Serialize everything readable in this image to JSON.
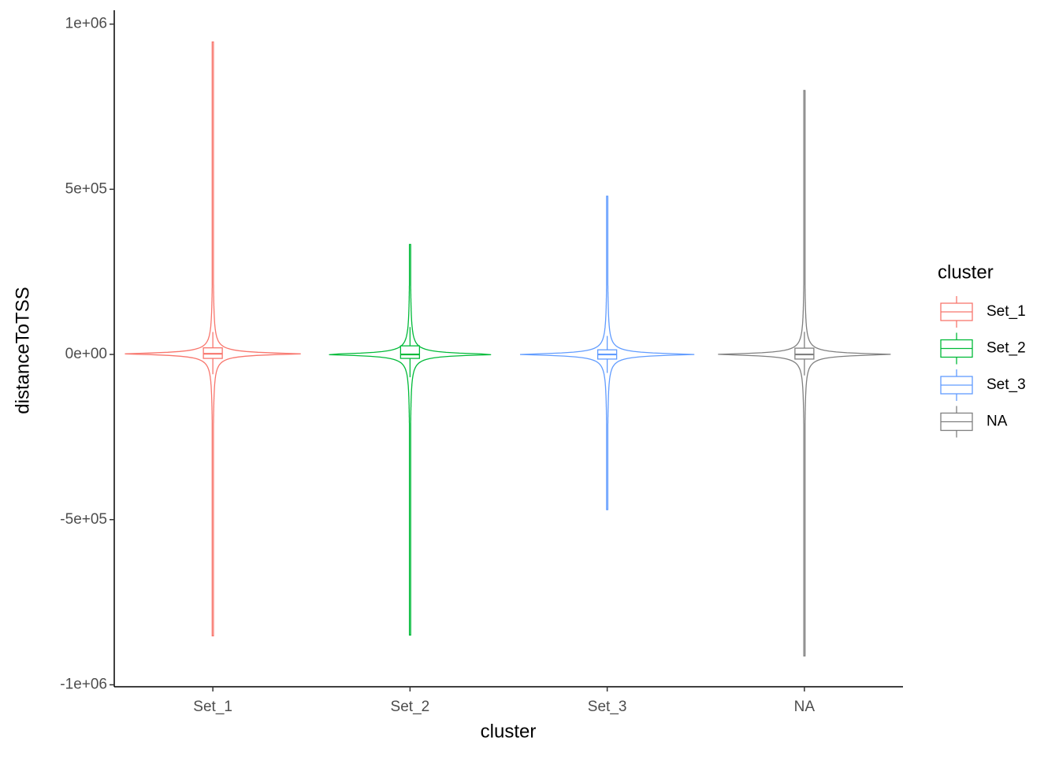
{
  "chart_data": {
    "type": "violin",
    "x_label": "cluster",
    "y_label": "distanceToTSS",
    "legend_title": "cluster",
    "categories": [
      "Set_1",
      "Set_2",
      "Set_3",
      "NA"
    ],
    "series": [
      {
        "name": "Set_1",
        "color": "#F8766D",
        "min": -853000,
        "q1": -12000,
        "median": 2000,
        "q3": 20000,
        "max": 946000
      },
      {
        "name": "Set_2",
        "color": "#00BA38",
        "min": -850000,
        "q1": -12000,
        "median": 0,
        "q3": 26000,
        "max": 333000
      },
      {
        "name": "Set_3",
        "color": "#619CFF",
        "min": -472000,
        "q1": -14000,
        "median": 0,
        "q3": 14000,
        "max": 479000
      },
      {
        "name": "NA",
        "color": "#7F7F7F",
        "min": -915000,
        "q1": -14000,
        "median": 0,
        "q3": 19000,
        "max": 799000
      }
    ],
    "ylim": [
      -1006000,
      1042000
    ],
    "yticks": [
      {
        "value": -1000000,
        "label": "-1e+06"
      },
      {
        "value": -500000,
        "label": "-5e+05"
      },
      {
        "value": 0,
        "label": "0e+00"
      },
      {
        "value": 500000,
        "label": "5e+05"
      },
      {
        "value": 1000000,
        "label": "1e+06"
      }
    ]
  }
}
